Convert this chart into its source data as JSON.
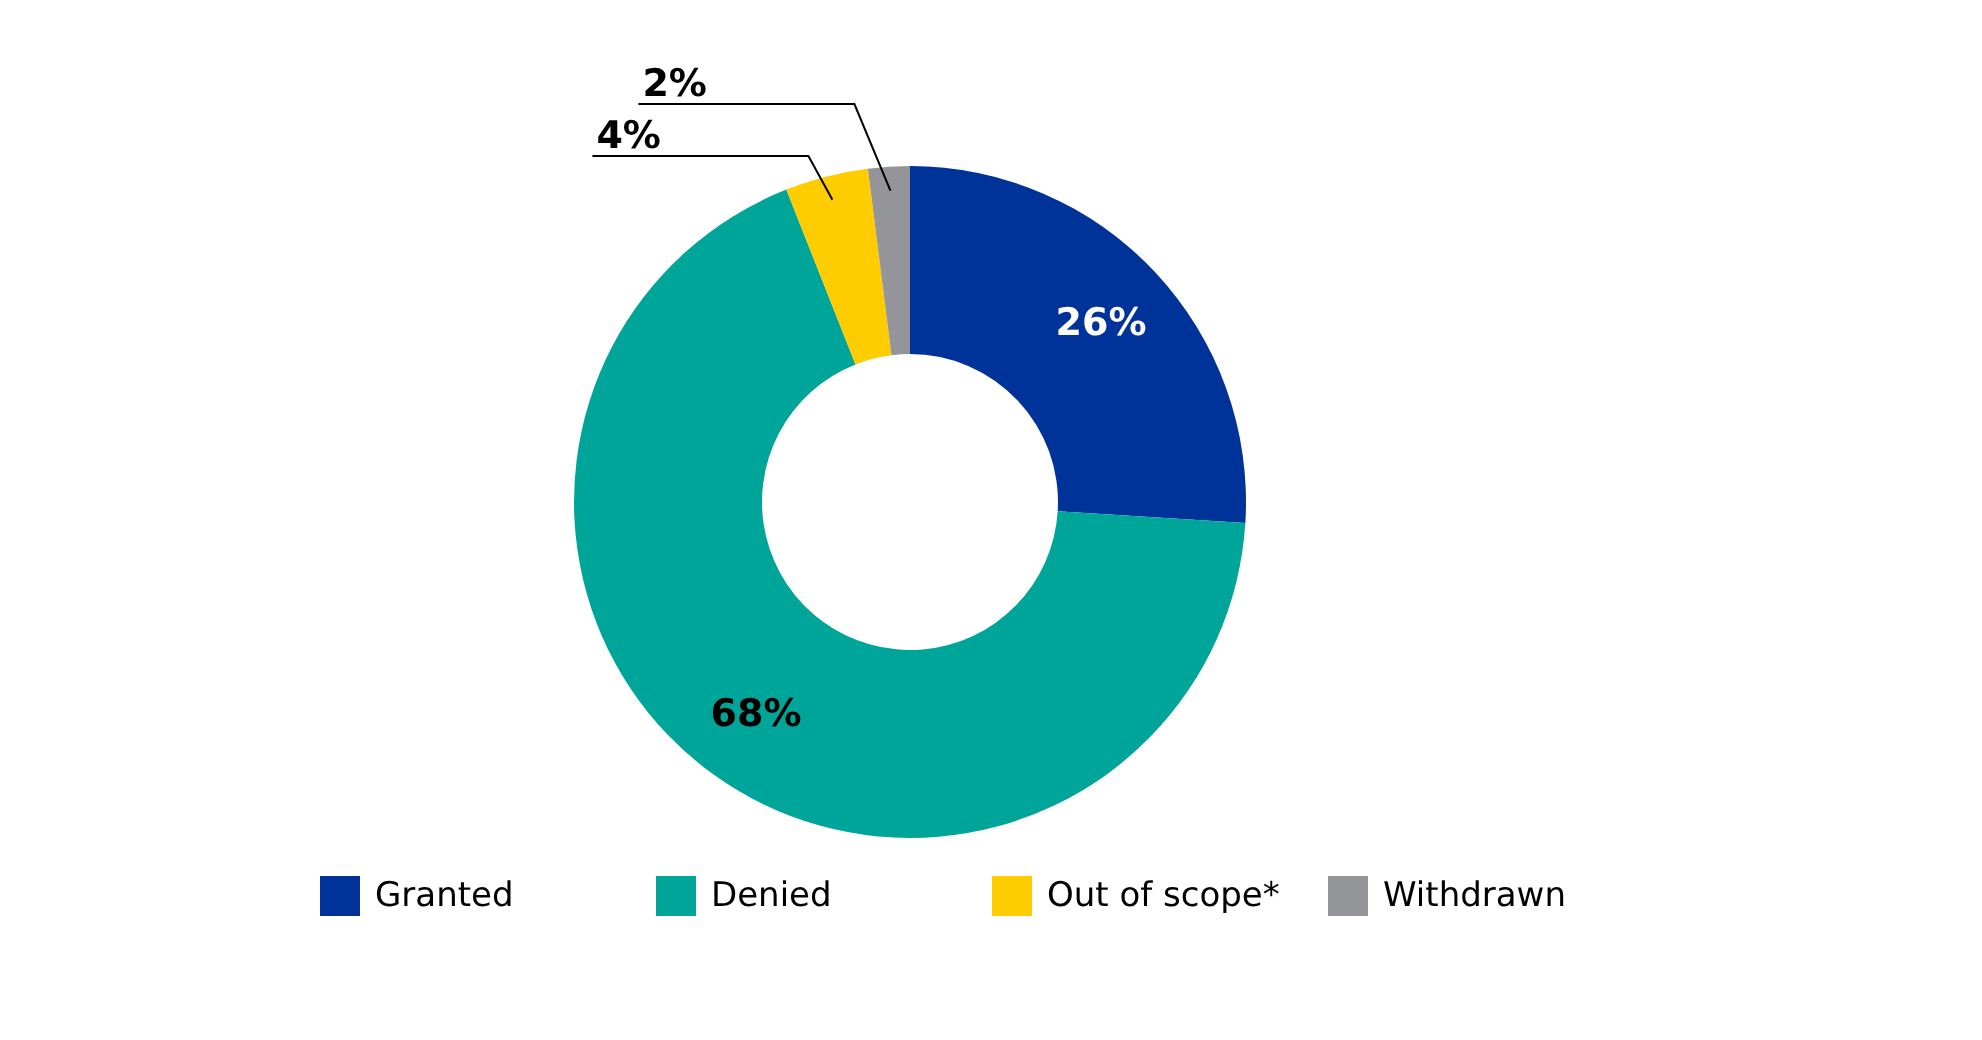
{
  "chart_data": {
    "type": "donut",
    "categories": [
      "Granted",
      "Denied",
      "Out of scope*",
      "Withdrawn"
    ],
    "values": [
      26,
      68,
      4,
      2
    ],
    "colors": [
      "#003399",
      "#00a599",
      "#ffcc00",
      "#939598"
    ],
    "value_labels": [
      "26%",
      "68%",
      "4%",
      "2%"
    ],
    "legend": "bottom"
  }
}
